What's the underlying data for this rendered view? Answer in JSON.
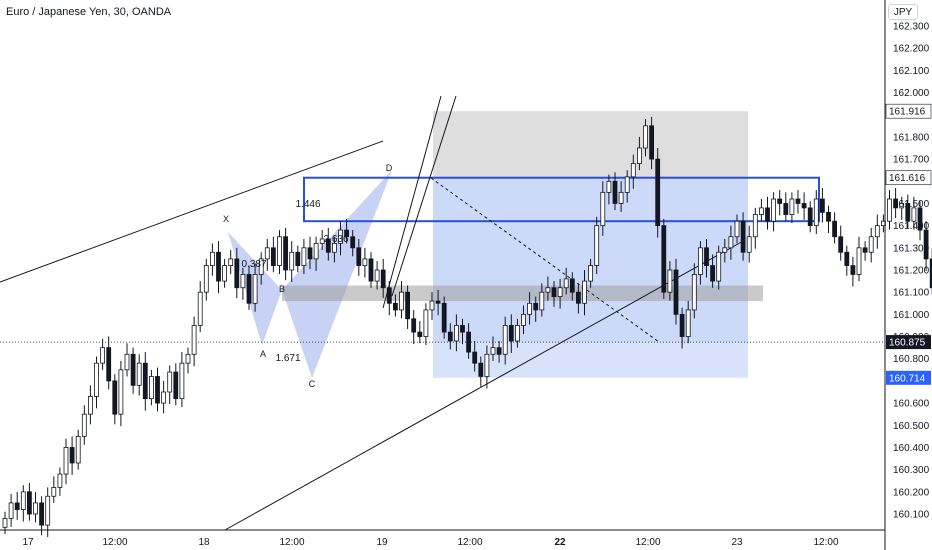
{
  "header": {
    "title": "Euro / Japanese Yen, 30, OANDA",
    "currency": "JPY"
  },
  "chart_data": {
    "type": "candlestick",
    "x_ticks": [
      "17",
      "12:00",
      "18",
      "12:00",
      "19",
      "12:00",
      "22",
      "12:00",
      "23",
      "12:00"
    ],
    "y_ticks": [
      "162.300",
      "162.200",
      "162.100",
      "162.000",
      "161.800",
      "161.700",
      "161.600",
      "161.500",
      "161.400",
      "161.300",
      "161.200",
      "161.100",
      "161.000",
      "160.900",
      "160.800",
      "160.700",
      "160.600",
      "160.500",
      "160.400",
      "160.300",
      "160.200",
      "160.100"
    ],
    "ylim": [
      160.05,
      162.38
    ],
    "price_labels": [
      {
        "value": 161.916,
        "text": "161.916",
        "color": "#131722"
      },
      {
        "value": 161.616,
        "text": "161.616",
        "color": "#131722"
      },
      {
        "value": 160.875,
        "text": "160.875",
        "color": "#ffffff"
      },
      {
        "value": 160.714,
        "text": "160.714",
        "color": "#2962ff"
      }
    ],
    "current_price": 160.875,
    "harmonic_points": [
      "X",
      "A",
      "B",
      "C",
      "D"
    ],
    "harmonic_ratios": [
      "0.387",
      "1.446",
      "2.636",
      "1.671"
    ],
    "zones": {
      "target_top": 161.916,
      "entry": 161.616,
      "stop_bottom": 160.714,
      "support_band": [
        161.06,
        161.13
      ],
      "resistance_box": [
        161.42,
        161.62
      ]
    },
    "candles_description": "EURJPY 30-minute candles, rally from ~160.1 to a peak of ~161.85, then range ~161.0-161.55 and a drop to ~160.88"
  }
}
